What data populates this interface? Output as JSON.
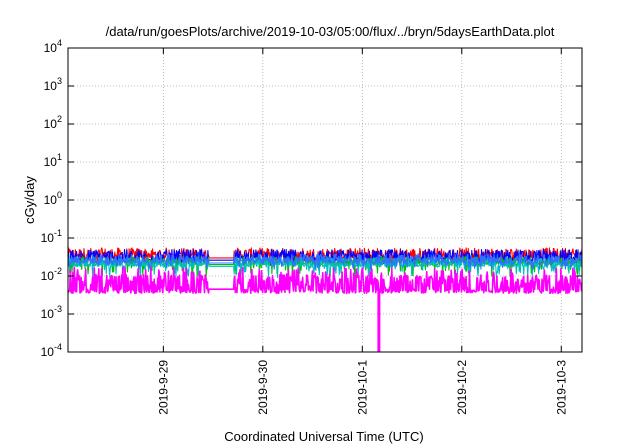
{
  "chart_data": {
    "type": "line",
    "title": "/data/run/goesPlots/archive/2019-10-03/05:00/flux/../bryn/5daysEarthData.plot",
    "xlabel": "Coordinated Universal Time (UTC)",
    "ylabel": "cGy/day",
    "yscale": "log",
    "ylim": [
      0.0001,
      10000
    ],
    "y_ticks": [
      {
        "base": "10",
        "exp": "-4",
        "value": 0.0001
      },
      {
        "base": "10",
        "exp": "-3",
        "value": 0.001
      },
      {
        "base": "10",
        "exp": "-2",
        "value": 0.01
      },
      {
        "base": "10",
        "exp": "-1",
        "value": 0.1
      },
      {
        "base": "10",
        "exp": "0",
        "value": 1
      },
      {
        "base": "10",
        "exp": "1",
        "value": 10
      },
      {
        "base": "10",
        "exp": "2",
        "value": 100
      },
      {
        "base": "10",
        "exp": "3",
        "value": 1000
      },
      {
        "base": "10",
        "exp": "4",
        "value": 10000
      }
    ],
    "xlim": [
      "2019-09-28 01:00",
      "2019-10-03 05:00"
    ],
    "x_ticks": [
      "2019-9-29",
      "2019-9-30",
      "2019-10-1",
      "2019-10-2",
      "2019-10-3"
    ],
    "grid": true,
    "legend": "none",
    "series": [
      {
        "color": "#ff0000",
        "level": 0.03,
        "low": 0.022,
        "high": 0.055
      },
      {
        "color": "#0000ff",
        "level": 0.026,
        "low": 0.018,
        "high": 0.05
      },
      {
        "color": "#00c000",
        "level": 0.02,
        "low": 0.0095,
        "high": 0.032
      },
      {
        "color": "#00bfbf",
        "level": 0.018,
        "low": 0.009,
        "high": 0.03
      },
      {
        "color": "#3070ff",
        "level": 0.022,
        "low": 0.015,
        "high": 0.038
      },
      {
        "color": "#ff00ff",
        "level": 0.0045,
        "low": 0.0035,
        "high": 0.017
      }
    ],
    "dropout": {
      "x": "2019-10-01 04:00",
      "value": 0.0001
    }
  }
}
